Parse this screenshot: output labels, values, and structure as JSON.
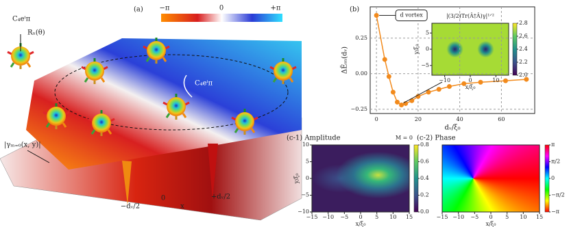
{
  "panel_a": {
    "label": "(a)",
    "operator": "C₄eⁱπ",
    "rotation": "Rₙ(θ)",
    "loop_operator": "C₄eⁱπ",
    "surface": "|γₘ₌₀(x, y)|",
    "phase_bar_labels": [
      "−π",
      "0",
      "+π"
    ],
    "axis_labels": [
      "−dᵥ/2",
      "0",
      "x",
      "+dᵥ/2"
    ]
  },
  "chart_data": [
    {
      "type": "line",
      "label": "(b)",
      "xlabel": "dᵥ/ξ₀",
      "ylabel": "ΔẼₛₙ(dᵥ)",
      "annotation": "d vortex",
      "grid": true,
      "x": [
        0,
        4,
        6,
        8,
        10,
        12,
        14,
        17,
        20,
        25,
        30,
        35,
        42,
        50,
        62,
        72
      ],
      "series": [
        {
          "color": "#f28a1c",
          "values": [
            0.41,
            0.1,
            -0.02,
            -0.13,
            -0.2,
            -0.22,
            -0.21,
            -0.19,
            -0.16,
            -0.13,
            -0.11,
            -0.09,
            -0.07,
            -0.06,
            -0.05,
            -0.04
          ]
        }
      ],
      "xlim": [
        -3,
        76
      ],
      "ylim": [
        -0.28,
        0.47
      ],
      "xticks": [
        0,
        20,
        40,
        60
      ],
      "yticks": [
        {
          "value": -0.25,
          "label": "−0.25"
        },
        {
          "value": 0,
          "label": "0.00"
        },
        {
          "value": 0.25,
          "label": "0.25"
        }
      ]
    },
    {
      "type": "heatmap",
      "title": "|(3/2)Tr(Â†Â)γ|¹ᐟ²",
      "xlabel": "x/ξ₀",
      "ylabel": "y/ξ₀",
      "colormap": "viridis",
      "xlim": [
        -15,
        15
      ],
      "ylim": [
        -8,
        8
      ],
      "xticks": [
        {
          "value": -10,
          "label": "−10"
        },
        0,
        10
      ],
      "yticks": [
        {
          "value": -5,
          "label": "−5"
        },
        0,
        5
      ],
      "clim": [
        2.0,
        2.8
      ],
      "cticks": [
        {
          "value": 2,
          "label": "2.0"
        },
        2.2,
        2.4,
        2.6,
        2.8
      ]
    },
    {
      "type": "heatmap",
      "title": "(c-1) Amplitude",
      "colorbar_title": "M = 0",
      "xlabel": "x/ξ₀",
      "ylabel": "y/ξ₀",
      "colormap": "viridis",
      "xlim": [
        -15,
        15
      ],
      "ylim": [
        -10,
        10
      ],
      "xticks": [
        {
          "value": -15,
          "label": "−15"
        },
        {
          "value": -10,
          "label": "−10"
        },
        {
          "value": -5,
          "label": "−5"
        },
        0,
        5,
        10,
        15
      ],
      "yticks": [
        {
          "value": -10,
          "label": "−10"
        },
        {
          "value": -5,
          "label": "−5"
        },
        0,
        5,
        10
      ],
      "clim": [
        0,
        0.8
      ],
      "cticks": [
        {
          "value": 0,
          "label": "0.0"
        },
        0.2,
        0.4,
        0.6,
        0.8
      ]
    },
    {
      "type": "heatmap",
      "title": "(c-2) Phase",
      "xlabel": "x/ξ₀",
      "colormap": "hsv",
      "xlim": [
        -15,
        15
      ],
      "ylim": [
        -10,
        10
      ],
      "xticks": [
        {
          "value": -15,
          "label": "−15"
        },
        {
          "value": -10,
          "label": "−10"
        },
        {
          "value": -5,
          "label": "−5"
        },
        0,
        5,
        10,
        15
      ],
      "clim": [
        -3.1416,
        3.1416
      ],
      "cticks": [
        {
          "value": -3.1416,
          "label": "−π"
        },
        {
          "value": -1.5708,
          "label": "−π/2"
        },
        0,
        {
          "value": 1.5708,
          "label": "π/2"
        },
        {
          "value": 3.1416,
          "label": "π"
        }
      ]
    }
  ]
}
